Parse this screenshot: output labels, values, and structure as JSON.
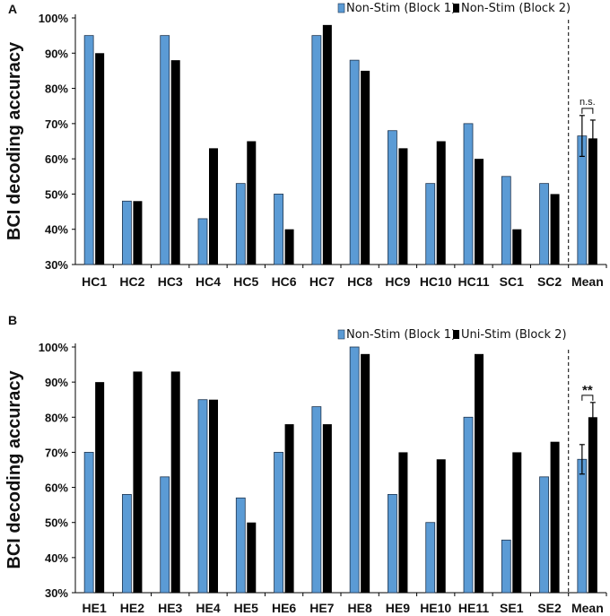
{
  "chart_data": [
    {
      "panel_label": "A",
      "type": "bar",
      "ylabel": "BCI decoding accuracy",
      "ylim": [
        30,
        100
      ],
      "yticks": [
        30,
        40,
        50,
        60,
        70,
        80,
        90,
        100
      ],
      "ytick_labels": [
        "30%",
        "40%",
        "50%",
        "60%",
        "70%",
        "80%",
        "90%",
        "100%"
      ],
      "categories": [
        "HC1",
        "HC2",
        "HC3",
        "HC4",
        "HC5",
        "HC6",
        "HC7",
        "HC8",
        "HC9",
        "HC10",
        "HC11",
        "SC1",
        "SC2",
        "Mean"
      ],
      "series": [
        {
          "name": "Non-Stim (Block 1)",
          "color": "#5b9bd5",
          "values": [
            95,
            48,
            95,
            43,
            53,
            50,
            95,
            88,
            68,
            53,
            70,
            55,
            53,
            66.5
          ]
        },
        {
          "name": "Non-Stim (Block 2)",
          "color": "#000000",
          "values": [
            90,
            48,
            88,
            63,
            65,
            40,
            98,
            85,
            63,
            65,
            60,
            40,
            50,
            65.8
          ]
        }
      ],
      "mean_error": [
        5.8,
        5.2
      ],
      "significance": "n.s.",
      "legend_position": "top-right"
    },
    {
      "panel_label": "B",
      "type": "bar",
      "ylabel": "BCI decoding accuracy",
      "ylim": [
        30,
        100
      ],
      "yticks": [
        30,
        40,
        50,
        60,
        70,
        80,
        90,
        100
      ],
      "ytick_labels": [
        "30%",
        "40%",
        "50%",
        "60%",
        "70%",
        "80%",
        "90%",
        "100%"
      ],
      "categories": [
        "HE1",
        "HE2",
        "HE3",
        "HE4",
        "HE5",
        "HE6",
        "HE7",
        "HE8",
        "HE9",
        "HE10",
        "HE11",
        "SE1",
        "SE2",
        "Mean"
      ],
      "series": [
        {
          "name": "Non-Stim (Block 1)",
          "color": "#5b9bd5",
          "values": [
            70,
            58,
            63,
            85,
            57,
            70,
            83,
            100,
            58,
            50,
            80,
            45,
            63,
            68
          ]
        },
        {
          "name": "Uni-Stim (Block 2)",
          "color": "#000000",
          "values": [
            90,
            93,
            93,
            85,
            50,
            78,
            78,
            98,
            70,
            68,
            98,
            70,
            73,
            80
          ]
        }
      ],
      "mean_error": [
        4.2,
        4.2
      ],
      "significance": "**",
      "legend_position": "top-right"
    }
  ]
}
